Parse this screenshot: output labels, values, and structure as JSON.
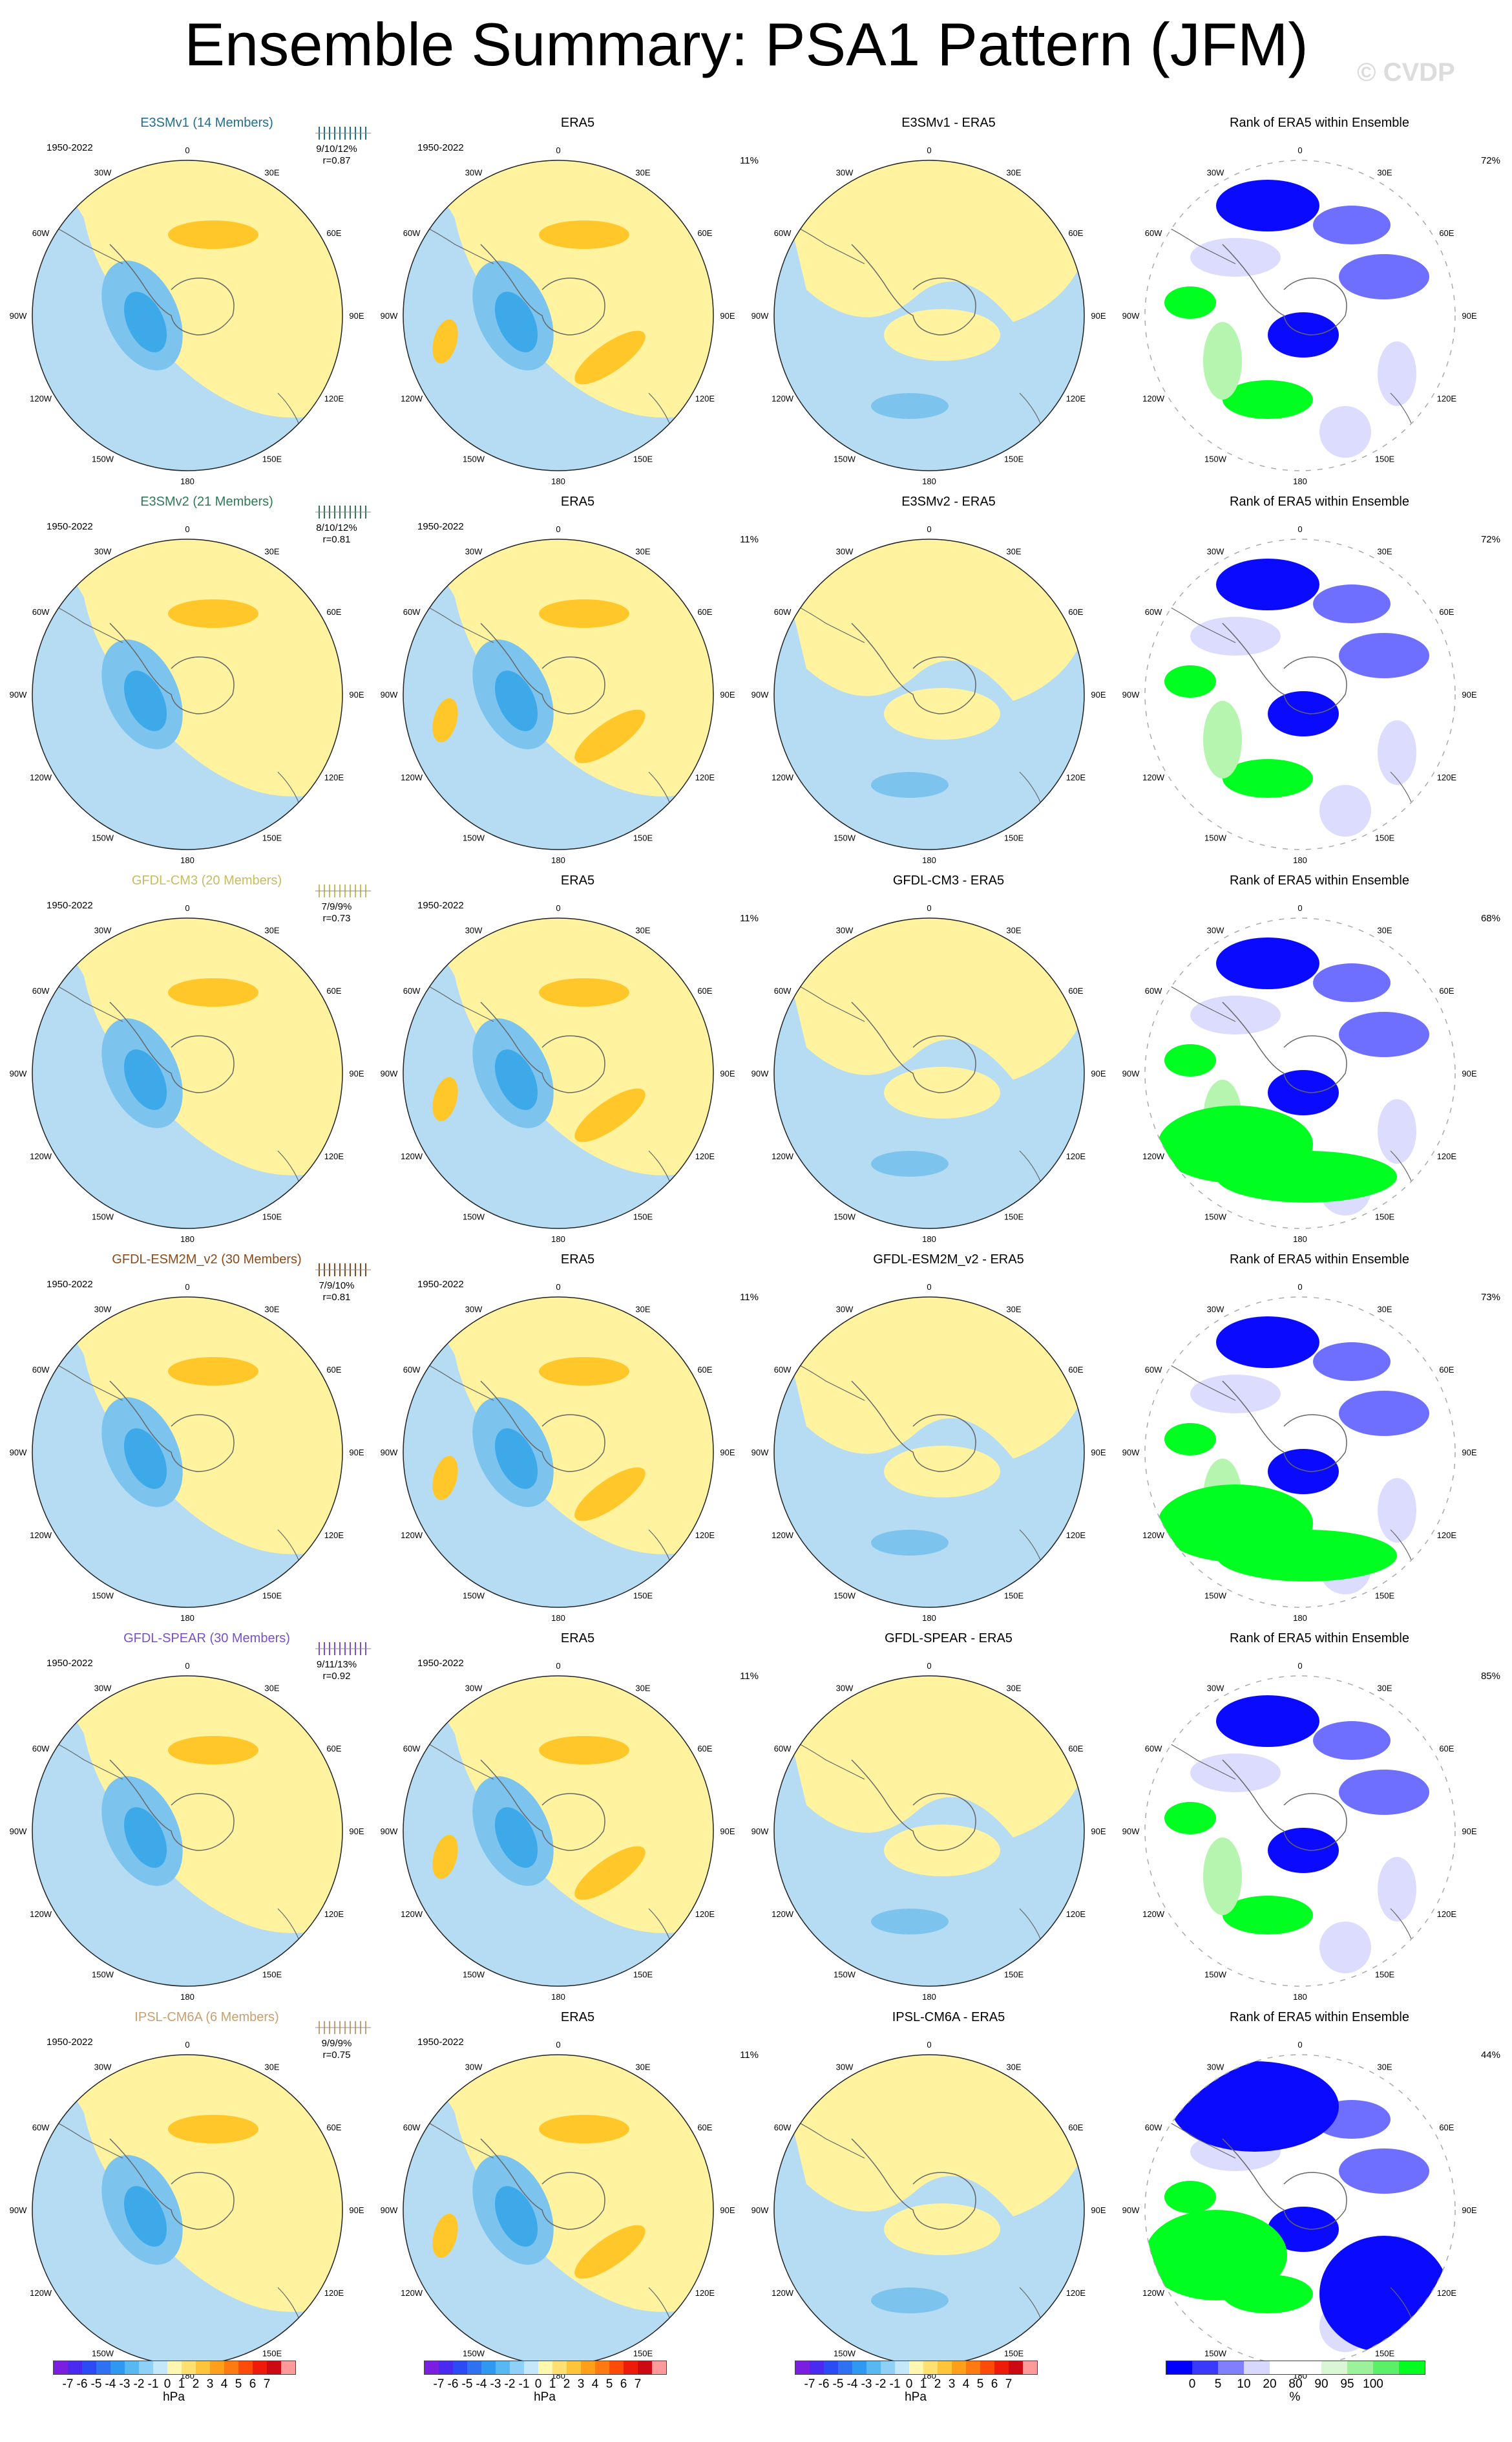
{
  "title": "Ensemble Summary: PSA1 Pattern (JFM)",
  "watermark": "© CVDP",
  "common": {
    "years": "1950-2022",
    "rank_title": "Rank of ERA5 within Ensemble",
    "era5_title": "ERA5",
    "era5_pct": "11%",
    "map_labels": [
      "0",
      "30E",
      "60E",
      "90E",
      "120E",
      "150E",
      "180",
      "150W",
      "120W",
      "90W",
      "60W",
      "30W"
    ]
  },
  "colors": {
    "pos": "#fff3a0",
    "pos2": "#ffc72a",
    "neg": "#b5dcf2",
    "neg2": "#7cc3ee",
    "neg3": "#3ea9e8",
    "rank_low": "#0a0aff",
    "rank_mid": "#6f6fff",
    "rank_light": "#dcdcff",
    "rank_high": "#00ff20",
    "rank_hmid": "#b6f5b0"
  },
  "rows": [
    {
      "model": "E3SMv1 (14 Members)",
      "diff_title": "E3SMv1 - ERA5",
      "stat1": "9/10/12%",
      "stat2": "r=0.87",
      "rank_pct": "72%",
      "title_color": "#1f6f8f"
    },
    {
      "model": "E3SMv2 (21 Members)",
      "diff_title": "E3SMv2 - ERA5",
      "stat1": "8/10/12%",
      "stat2": "r=0.81",
      "rank_pct": "72%",
      "title_color": "#2e7a55"
    },
    {
      "model": "GFDL-CM3 (20 Members)",
      "diff_title": "GFDL-CM3 - ERA5",
      "stat1": "7/9/9%",
      "stat2": "r=0.73",
      "rank_pct": "68%",
      "title_color": "#c8bb60"
    },
    {
      "model": "GFDL-ESM2M_v2 (30 Members)",
      "diff_title": "GFDL-ESM2M_v2 - ERA5",
      "stat1": "7/9/10%",
      "stat2": "r=0.81",
      "rank_pct": "73%",
      "title_color": "#8a4a1a"
    },
    {
      "model": "GFDL-SPEAR (30 Members)",
      "diff_title": "GFDL-SPEAR - ERA5",
      "stat1": "9/11/13%",
      "stat2": "r=0.92",
      "rank_pct": "85%",
      "title_color": "#7a4fc8"
    },
    {
      "model": "IPSL-CM6A (6 Members)",
      "diff_title": "IPSL-CM6A - ERA5",
      "stat1": "9/9/9%",
      "stat2": "r=0.75",
      "rank_pct": "44%",
      "title_color": "#c8a070"
    }
  ],
  "label_bars": [
    {
      "unit": "hPa",
      "ticks": [
        "-7",
        "-6",
        "-5",
        "-4",
        "-3",
        "-2",
        "-1",
        "0",
        "1",
        "2",
        "3",
        "4",
        "5",
        "6",
        "7"
      ],
      "colors": [
        "#7a1ee0",
        "#4a2af0",
        "#2b4cf5",
        "#2e72f2",
        "#2f98f0",
        "#57b8f2",
        "#8fd0f6",
        "#c4e8fa",
        "#fff7b0",
        "#ffe070",
        "#ffc43a",
        "#ff9f1a",
        "#ff7a10",
        "#ff4a0a",
        "#ee1a0a",
        "#cc0a14",
        "#ff9a9a"
      ]
    },
    {
      "unit": "hPa",
      "ticks": [
        "-7",
        "-6",
        "-5",
        "-4",
        "-3",
        "-2",
        "-1",
        "0",
        "1",
        "2",
        "3",
        "4",
        "5",
        "6",
        "7"
      ],
      "colors": [
        "#7a1ee0",
        "#4a2af0",
        "#2b4cf5",
        "#2e72f2",
        "#2f98f0",
        "#57b8f2",
        "#8fd0f6",
        "#c4e8fa",
        "#fff7b0",
        "#ffe070",
        "#ffc43a",
        "#ff9f1a",
        "#ff7a10",
        "#ff4a0a",
        "#ee1a0a",
        "#cc0a14",
        "#ff9a9a"
      ]
    },
    {
      "unit": "hPa",
      "ticks": [
        "-7",
        "-6",
        "-5",
        "-4",
        "-3",
        "-2",
        "-1",
        "0",
        "1",
        "2",
        "3",
        "4",
        "5",
        "6",
        "7"
      ],
      "colors": [
        "#7a1ee0",
        "#4a2af0",
        "#2b4cf5",
        "#2e72f2",
        "#2f98f0",
        "#57b8f2",
        "#8fd0f6",
        "#c4e8fa",
        "#fff7b0",
        "#ffe070",
        "#ffc43a",
        "#ff9f1a",
        "#ff7a10",
        "#ff4a0a",
        "#ee1a0a",
        "#cc0a14",
        "#ff9a9a"
      ]
    },
    {
      "unit": "%",
      "ticks": [
        "0",
        "5",
        "10",
        "20",
        "80",
        "90",
        "95",
        "100"
      ],
      "colors": [
        "#0000ff",
        "#3a3aff",
        "#8080ff",
        "#d8d8ff",
        "#ffffff",
        "#ffffff",
        "#d9f7d4",
        "#9cf29a",
        "#5bf068",
        "#00ff20"
      ]
    }
  ]
}
